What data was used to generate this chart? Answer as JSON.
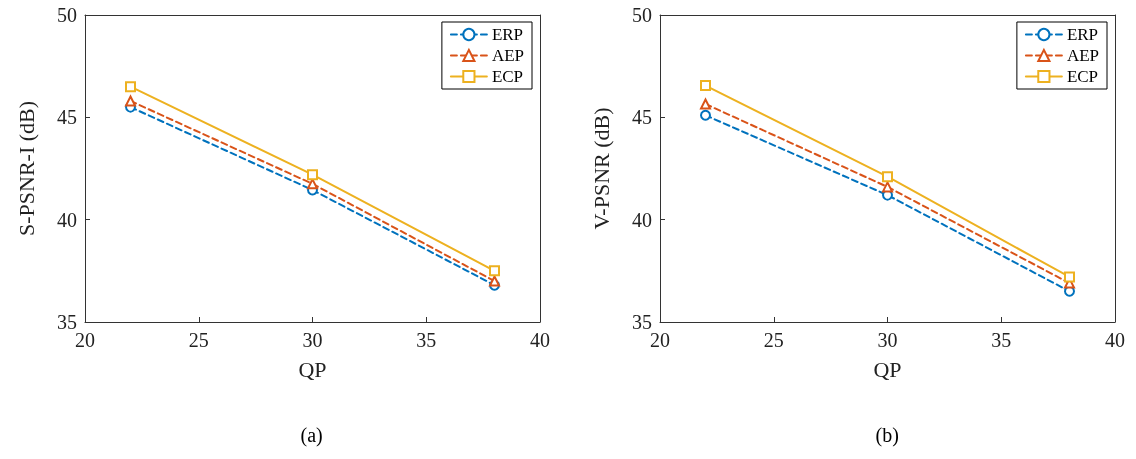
{
  "chart_data": [
    {
      "type": "line",
      "xlabel": "QP",
      "ylabel": "S-PSNR-I (dB)",
      "x": [
        22,
        30,
        38
      ],
      "xlim": [
        20,
        40
      ],
      "xticks": [
        20,
        25,
        30,
        35,
        40
      ],
      "ylim": [
        35,
        50
      ],
      "yticks": [
        35,
        40,
        45,
        50
      ],
      "grid": false,
      "legend": "top right",
      "annotations": [
        "(a)"
      ],
      "series": [
        {
          "name": "ERP",
          "color": "#0072bd",
          "values": [
            45.5,
            41.45,
            36.8
          ],
          "marker": "circle",
          "line_style": "dashed"
        },
        {
          "name": "AEP",
          "color": "#d95319",
          "values": [
            45.8,
            41.75,
            37.0
          ],
          "marker": "triangle",
          "line_style": "dashed"
        },
        {
          "name": "ECP",
          "color": "#edb120",
          "values": [
            46.5,
            42.2,
            37.5
          ],
          "marker": "square",
          "line_style": "solid"
        }
      ]
    },
    {
      "type": "line",
      "xlabel": "QP",
      "ylabel": "V-PSNR (dB)",
      "x": [
        22,
        30,
        38
      ],
      "xlim": [
        20,
        40
      ],
      "xticks": [
        20,
        25,
        30,
        35,
        40
      ],
      "ylim": [
        35,
        50
      ],
      "yticks": [
        35,
        40,
        45,
        50
      ],
      "grid": false,
      "legend": "top right",
      "annotations": [
        "(b)"
      ],
      "series": [
        {
          "name": "ERP",
          "color": "#0072bd",
          "values": [
            45.1,
            41.2,
            36.5
          ],
          "marker": "circle",
          "line_style": "dashed"
        },
        {
          "name": "AEP",
          "color": "#d95319",
          "values": [
            45.65,
            41.6,
            36.9
          ],
          "marker": "triangle",
          "line_style": "dashed"
        },
        {
          "name": "ECP",
          "color": "#edb120",
          "values": [
            46.55,
            42.1,
            37.2
          ],
          "marker": "square",
          "line_style": "solid"
        }
      ]
    }
  ]
}
